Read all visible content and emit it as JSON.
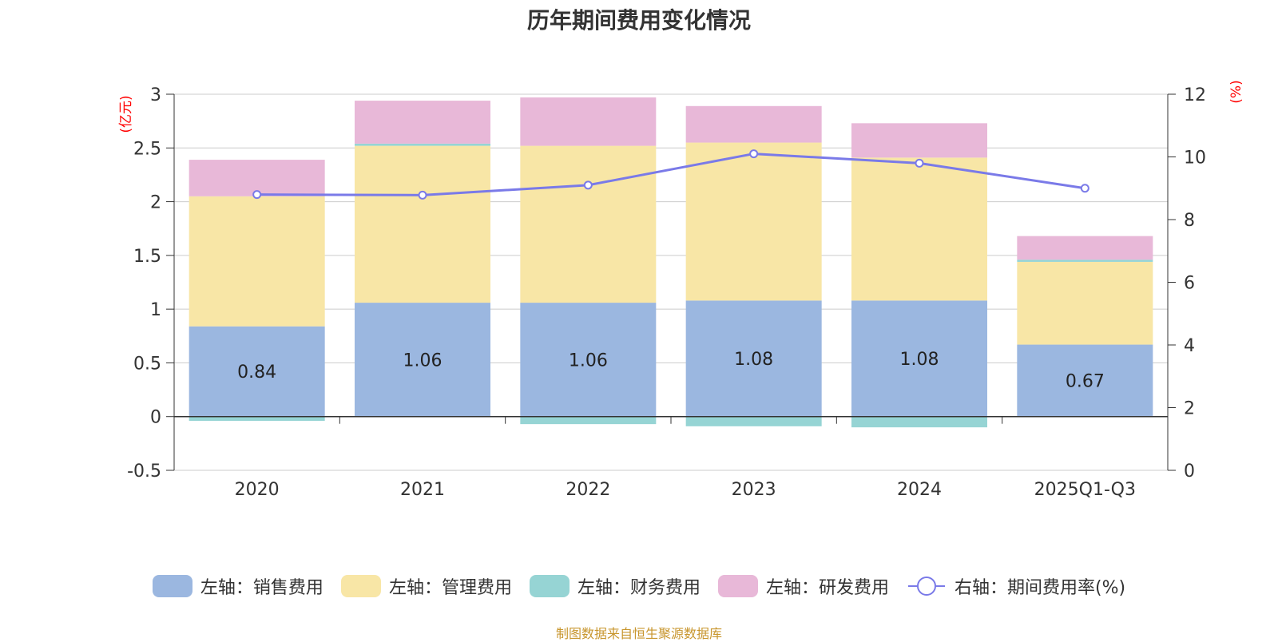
{
  "chart_data": {
    "type": "bar",
    "title": "历年期间费用变化情况",
    "categories": [
      "2020",
      "2021",
      "2022",
      "2023",
      "2024",
      "2025Q1-Q3"
    ],
    "y_left": {
      "label": "(亿元)",
      "ylim": [
        -0.5,
        3
      ],
      "ticks": [
        "3",
        "2.5",
        "2",
        "1.5",
        "1",
        "0.5",
        "0",
        "-0.5"
      ],
      "tick_values": [
        3,
        2.5,
        2,
        1.5,
        1,
        0.5,
        0,
        -0.5
      ]
    },
    "y_right": {
      "label": "(%)",
      "ylim": [
        0,
        12
      ],
      "ticks": [
        "12",
        "10",
        "8",
        "6",
        "4",
        "2",
        "0"
      ],
      "tick_values": [
        12,
        10,
        8,
        6,
        4,
        2,
        0
      ]
    },
    "series": [
      {
        "name": "左轴：销售费用",
        "type": "bar",
        "axis": "left",
        "color": "#9bb7e0",
        "values": [
          0.84,
          1.06,
          1.06,
          1.08,
          1.08,
          0.67
        ],
        "labels": [
          "0.84",
          "1.06",
          "1.06",
          "1.08",
          "1.08",
          "0.67"
        ]
      },
      {
        "name": "左轴：管理费用",
        "type": "bar",
        "axis": "left",
        "color": "#f8e6a6",
        "values": [
          1.21,
          1.46,
          1.46,
          1.47,
          1.33,
          0.77
        ]
      },
      {
        "name": "左轴：财务费用",
        "type": "bar",
        "axis": "left",
        "color": "#96d4d4",
        "values": [
          -0.04,
          0.02,
          -0.07,
          -0.09,
          -0.1,
          0.02
        ]
      },
      {
        "name": "左轴：研发费用",
        "type": "bar",
        "axis": "left",
        "color": "#e8b8d8",
        "values": [
          0.34,
          0.4,
          0.45,
          0.34,
          0.32,
          0.22
        ]
      },
      {
        "name": "右轴：期间费用率(%)",
        "type": "line",
        "axis": "right",
        "color": "#7a7ae8",
        "values": [
          8.8,
          8.78,
          9.1,
          10.1,
          9.8,
          9.0
        ]
      }
    ]
  },
  "legend": {
    "sales": "左轴：销售费用",
    "admin": "左轴：管理费用",
    "finance": "左轴：财务费用",
    "rnd": "左轴：研发费用",
    "ratio": "右轴：期间费用率(%)"
  },
  "footer": {
    "text": "制图数据来自恒生聚源数据库",
    "color": "#c8962e"
  },
  "colors": {
    "axis_label": "#ff0000",
    "grid": "#cccccc",
    "text": "#333333"
  }
}
